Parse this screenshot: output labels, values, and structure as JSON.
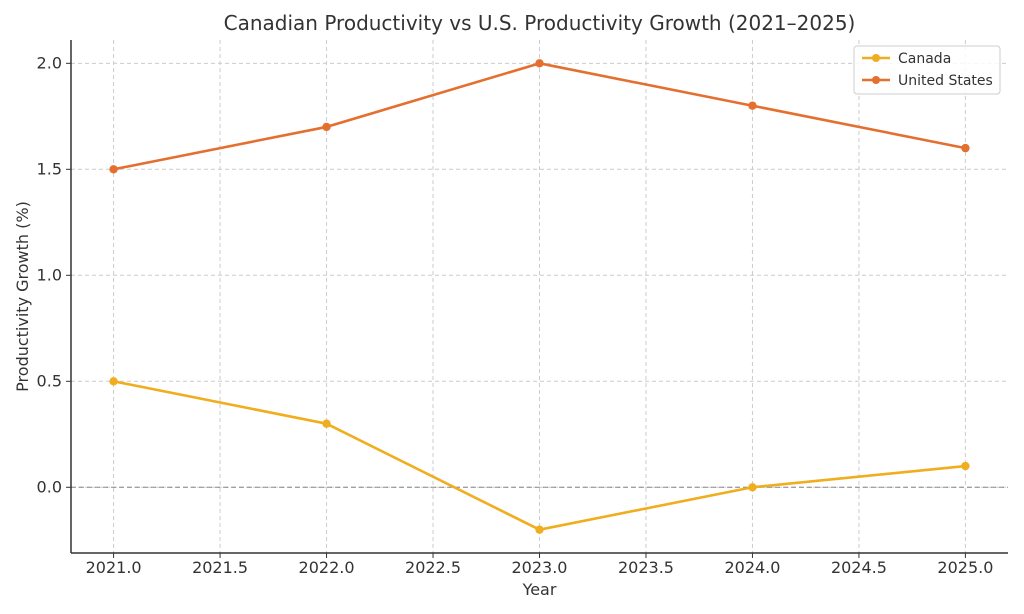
{
  "chart_data": {
    "type": "line",
    "title": "Canadian Productivity vs U.S. Productivity Growth (2021–2025)",
    "xlabel": "Year",
    "ylabel": "Productivity Growth (%)",
    "x": [
      2021,
      2022,
      2023,
      2024,
      2025
    ],
    "xlim": [
      2020.8,
      2025.2
    ],
    "ylim": [
      -0.31,
      2.11
    ],
    "x_ticks": [
      2021.0,
      2021.5,
      2022.0,
      2022.5,
      2023.0,
      2023.5,
      2024.0,
      2024.5,
      2025.0
    ],
    "x_tick_labels": [
      "2021.0",
      "2021.5",
      "2022.0",
      "2022.5",
      "2023.0",
      "2023.5",
      "2024.0",
      "2024.5",
      "2025.0"
    ],
    "y_ticks": [
      0.0,
      0.5,
      1.0,
      1.5,
      2.0
    ],
    "y_tick_labels": [
      "0.0",
      "0.5",
      "1.0",
      "1.5",
      "2.0"
    ],
    "grid": true,
    "zero_line": true,
    "legend_position": "top-right",
    "series": [
      {
        "name": "Canada",
        "values": [
          0.5,
          0.3,
          -0.2,
          0.0,
          0.1
        ],
        "color": "#f0ad1e"
      },
      {
        "name": "United States",
        "values": [
          1.5,
          1.7,
          2.0,
          1.8,
          1.6
        ],
        "color": "#e46f2e"
      }
    ]
  }
}
